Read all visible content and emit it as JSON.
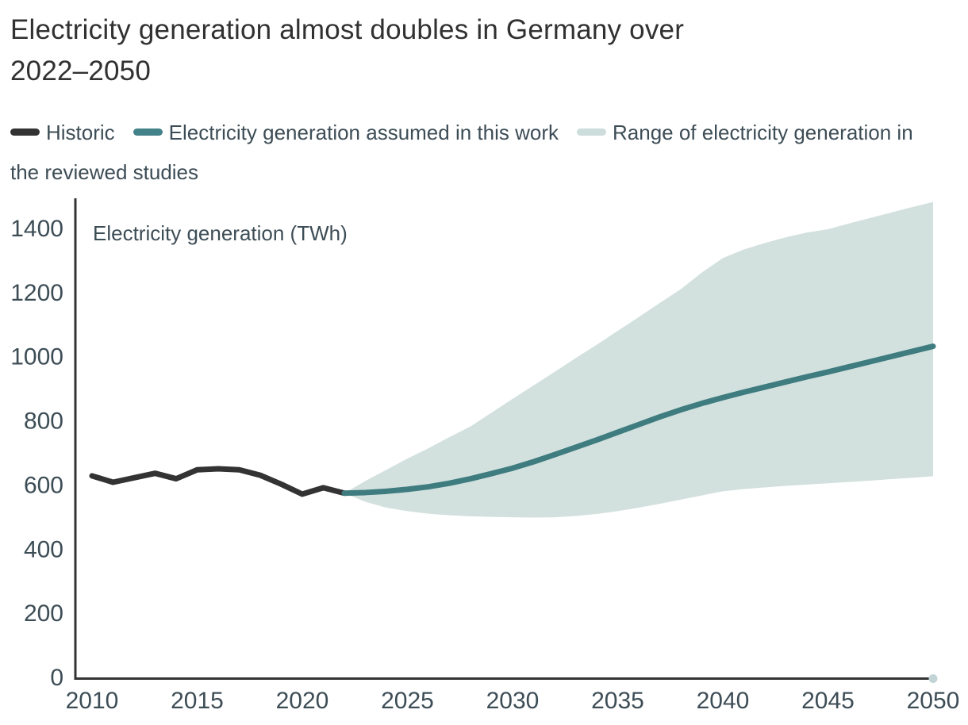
{
  "header": {
    "title_lines": [
      "Electricity generation almost doubles in Germany over",
      "2022–2050"
    ]
  },
  "legend": {
    "items": [
      {
        "label": "Historic",
        "color": "#333333"
      },
      {
        "label": "Electricity generation assumed in this work",
        "color": "#44828a"
      },
      {
        "label": "Range of electricity generation in the reviewed studies",
        "color": "#cddddb"
      }
    ]
  },
  "chart_data": {
    "type": "line",
    "title": "Electricity generation almost doubles in Germany over 2022–2050",
    "ylabel": "Electricity generation (TWh)",
    "xlabel": "",
    "xlim": [
      2010,
      2050
    ],
    "ylim": [
      0,
      1490
    ],
    "grid": false,
    "legend_position": "top",
    "y_ticks": [
      0,
      200,
      400,
      600,
      800,
      1000,
      1200,
      1400
    ],
    "x_ticks": [
      2010,
      2015,
      2020,
      2025,
      2030,
      2035,
      2040,
      2045,
      2050
    ],
    "colors": {
      "historic_line": "#333333",
      "assumed_line": "#3e7c80",
      "band_fill": "#d2e0de",
      "axis_line": "#333333",
      "tick_text": "#3d4d56",
      "endpoint_dot": "#c2d4d6"
    },
    "series": [
      {
        "name": "Historic",
        "type": "line",
        "color": "#333333",
        "x": [
          2010,
          2011,
          2012,
          2013,
          2014,
          2015,
          2016,
          2017,
          2018,
          2019,
          2020,
          2021,
          2022
        ],
        "values": [
          626,
          606,
          620,
          634,
          617,
          645,
          648,
          645,
          628,
          600,
          569,
          589,
          572
        ]
      },
      {
        "name": "Electricity generation assumed in this work",
        "type": "line",
        "color": "#3e7c80",
        "x": [
          2022,
          2023,
          2024,
          2025,
          2026,
          2027,
          2028,
          2029,
          2030,
          2031,
          2032,
          2033,
          2034,
          2035,
          2036,
          2037,
          2038,
          2039,
          2040,
          2041,
          2042,
          2043,
          2044,
          2045,
          2046,
          2047,
          2048,
          2049,
          2050
        ],
        "values": [
          572,
          574,
          578,
          584,
          592,
          603,
          617,
          633,
          650,
          670,
          692,
          715,
          738,
          762,
          786,
          810,
          832,
          852,
          870,
          887,
          903,
          919,
          935,
          950,
          966,
          982,
          998,
          1014,
          1030
        ]
      },
      {
        "name": "Range of electricity generation in the reviewed studies",
        "type": "band",
        "color": "#d2e0de",
        "x": [
          2022,
          2023,
          2024,
          2025,
          2026,
          2027,
          2028,
          2029,
          2030,
          2031,
          2032,
          2033,
          2034,
          2035,
          2036,
          2037,
          2038,
          2039,
          2040,
          2041,
          2042,
          2043,
          2044,
          2045,
          2046,
          2047,
          2048,
          2049,
          2050
        ],
        "upper": [
          572,
          610,
          645,
          680,
          712,
          747,
          780,
          823,
          866,
          908,
          950,
          993,
          1035,
          1078,
          1121,
          1165,
          1208,
          1260,
          1305,
          1332,
          1352,
          1370,
          1385,
          1395,
          1413,
          1430,
          1447,
          1464,
          1480
        ],
        "lower": [
          572,
          545,
          527,
          516,
          508,
          503,
          500,
          498,
          497,
          496,
          497,
          501,
          507,
          516,
          527,
          539,
          552,
          565,
          578,
          585,
          590,
          595,
          599,
          603,
          607,
          611,
          616,
          620,
          625
        ]
      }
    ],
    "endpoint_marker": {
      "x": 2050,
      "value": 0,
      "color": "#c2d4d6"
    }
  }
}
